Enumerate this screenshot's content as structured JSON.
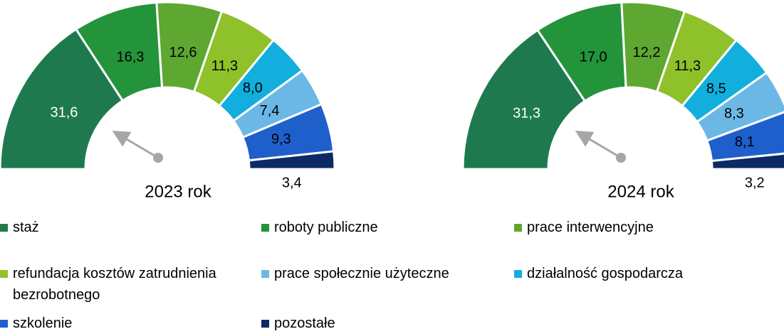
{
  "legend": [
    {
      "name": "staż",
      "color": "#1e7a4e",
      "label_color": "#ffffff"
    },
    {
      "name": "roboty publiczne",
      "color": "#23943a",
      "label_color": "#000000"
    },
    {
      "name": "prace interwencyjne",
      "color": "#5ea832",
      "label_color": "#000000"
    },
    {
      "name": "refundacja kosztów zatrudnienia bezrobotnego",
      "color": "#8fc12a",
      "label_color": "#000000"
    },
    {
      "name": "działalność gospodarcza",
      "color": "#12aede",
      "label_color": "#000000"
    },
    {
      "name": "prace społecznie użyteczne",
      "color": "#6bb8e6",
      "label_color": "#000000"
    },
    {
      "name": "szkolenie",
      "color": "#1f5fcc",
      "label_color": "#000000"
    },
    {
      "name": "pozostałe",
      "color": "#0b2a66",
      "label_color": "#000000"
    }
  ],
  "chart_data": [
    {
      "type": "pie",
      "title": "2023 rok",
      "values": [
        31.6,
        16.3,
        12.6,
        11.3,
        8.0,
        7.4,
        9.3,
        3.4
      ],
      "value_labels": [
        "31,6",
        "16,3",
        "12,6",
        "11,3",
        "8,0",
        "7,4",
        "9,3",
        "3,4"
      ]
    },
    {
      "type": "pie",
      "title": "2024 rok",
      "values": [
        31.3,
        17.0,
        12.2,
        11.3,
        8.5,
        8.3,
        8.1,
        3.2
      ],
      "value_labels": [
        "31,3",
        "17,0",
        "12,2",
        "11,3",
        "8,5",
        "8,3",
        "8,1",
        "3,2"
      ]
    }
  ]
}
